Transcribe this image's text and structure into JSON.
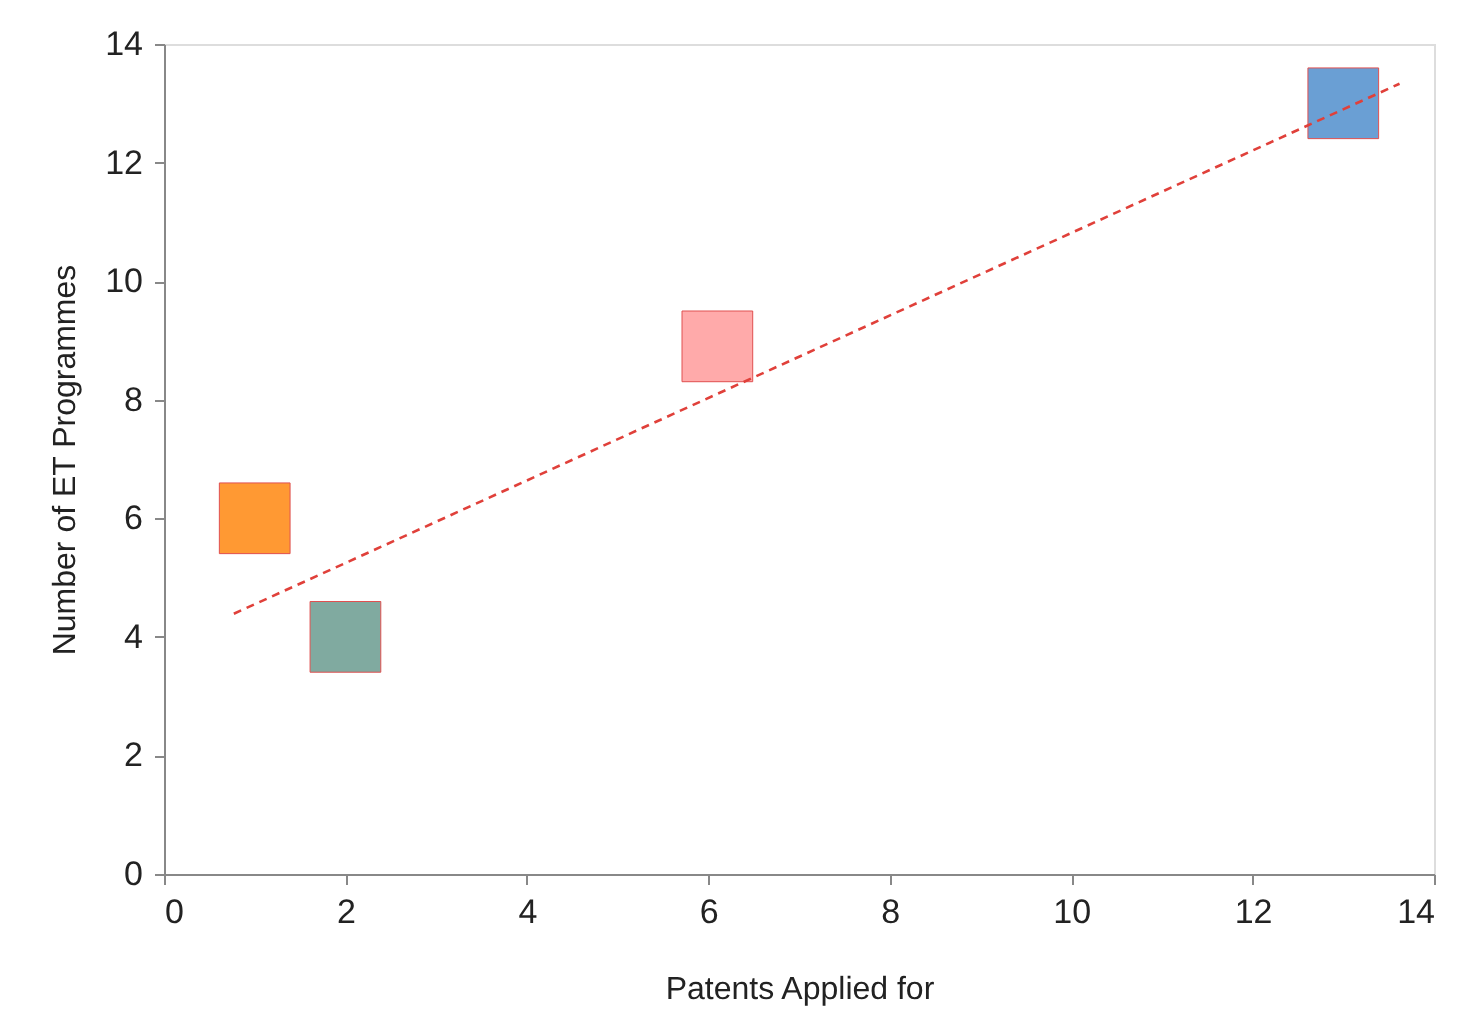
{
  "chart_data": {
    "type": "scatter",
    "xlabel": "Patents Applied for",
    "ylabel": "Number of ET Programmes",
    "xlim": [
      0,
      14
    ],
    "xticks": [
      0,
      2,
      4,
      6,
      8,
      10,
      12,
      14
    ],
    "ylim": [
      0,
      14
    ],
    "yticks": [
      0,
      2,
      4,
      6,
      8,
      10,
      12,
      14
    ],
    "grid": false,
    "legend": false,
    "series": [
      {
        "marker": "square",
        "x": [
          1,
          2,
          6.1,
          13
        ],
        "values": [
          6,
          4,
          8.9,
          13
        ],
        "colors": [
          "#ff9933",
          "#80aaa0",
          "#ffaaaa",
          "#6a9fd4"
        ]
      },
      {
        "type": "line",
        "x": [
          0.77,
          13.62
        ],
        "values": [
          4.39,
          13.33
        ],
        "color": "#e0403a",
        "line_style": "dashed",
        "marker": "none"
      }
    ]
  }
}
